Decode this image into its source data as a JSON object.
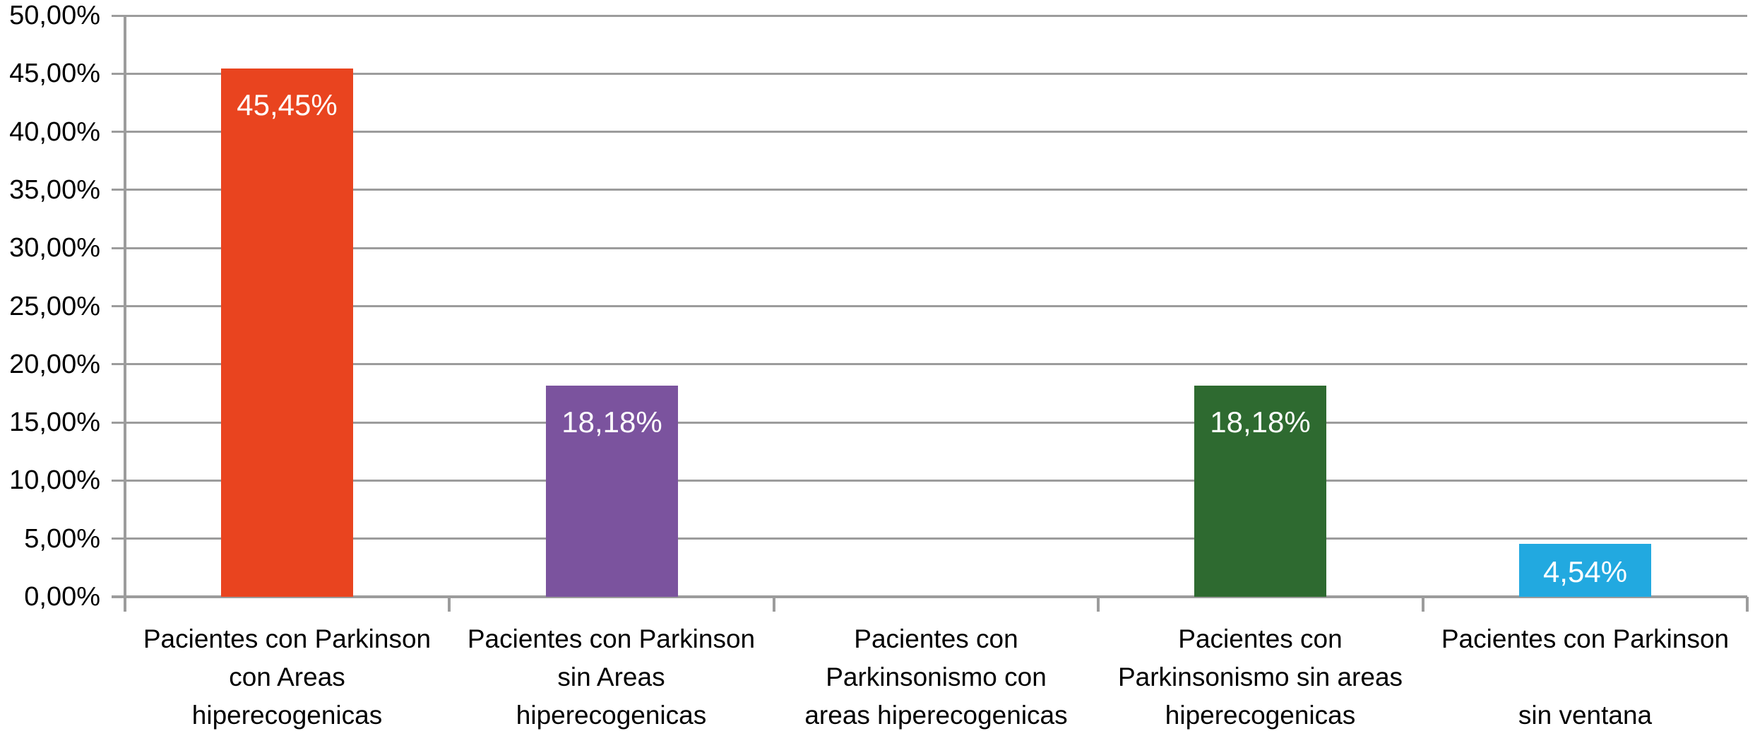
{
  "chart_data": {
    "type": "bar",
    "title": "",
    "xlabel": "",
    "ylabel": "",
    "legend": "none",
    "grid": true,
    "ylim": [
      0,
      50
    ],
    "y_step": 5,
    "y_tick_labels": [
      "0,00%",
      "5,00%",
      "10,00%",
      "15,00%",
      "20,00%",
      "25,00%",
      "30,00%",
      "35,00%",
      "40,00%",
      "45,00%",
      "50,00%"
    ],
    "categories": [
      "Pacientes con Parkinson\ncon Areas\nhiperecogenicas",
      "Pacientes con Parkinson\nsin Areas\nhiperecogenicas",
      "Pacientes con\nParkinsonismo con\nareas hiperecogenicas",
      "Pacientes con\nParkinsonismo sin areas\nhiperecogenicas",
      "Pacientes con Parkinson\n\nsin ventana"
    ],
    "values": [
      45.45,
      18.18,
      0,
      18.18,
      4.54
    ],
    "value_labels": [
      "45,45%",
      "18,18%",
      "",
      "18,18%",
      "4,54%"
    ],
    "bar_colors": [
      "#e9441f",
      "#7b539e",
      "#e9441f",
      "#2e6a30",
      "#22a9e0"
    ],
    "colors": {
      "grid": "#9c9c9c",
      "axis": "#9c9c9c",
      "tick_text": "#000000",
      "value_text": "#ffffff",
      "background": "#ffffff"
    }
  }
}
